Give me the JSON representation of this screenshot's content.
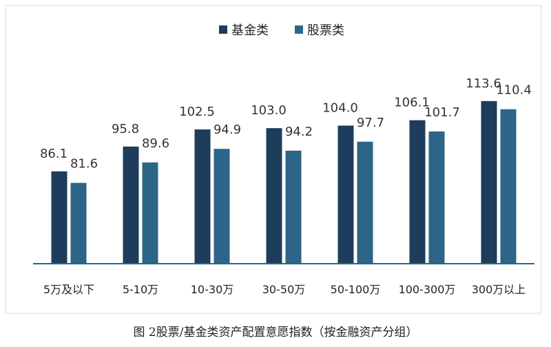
{
  "chart_data": {
    "type": "bar",
    "caption": "图 2股票/基金类资产配置意愿指数（按金融资产分组）",
    "categories": [
      "5万及以下",
      "5-10万",
      "10-30万",
      "30-50万",
      "50-100万",
      "100-300万",
      "300万以上"
    ],
    "series": [
      {
        "name": "基金类",
        "color": "#1e3d5c",
        "values": [
          86.1,
          95.8,
          102.5,
          103.0,
          104.0,
          106.1,
          113.6
        ],
        "value_labels": [
          "86.1",
          "95.8",
          "102.5",
          "103.0",
          "104.0",
          "106.1",
          "113.6"
        ]
      },
      {
        "name": "股票类",
        "color": "#2d6588",
        "values": [
          81.6,
          89.6,
          94.9,
          94.2,
          97.7,
          101.7,
          110.4
        ],
        "value_labels": [
          "81.6",
          "89.6",
          "94.9",
          "94.2",
          "97.7",
          "101.7",
          "110.4"
        ]
      }
    ],
    "ylim": [
      50,
      120
    ],
    "legend": "top"
  }
}
